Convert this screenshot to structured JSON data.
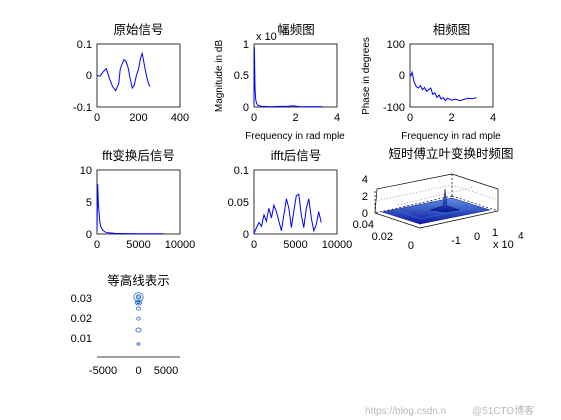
{
  "chart_data": [
    {
      "id": "p1",
      "type": "line",
      "title": "原始信号",
      "xlabel": "",
      "ylabel": "",
      "xlim": [
        0,
        400
      ],
      "ylim": [
        -0.1,
        0.1
      ],
      "xticks": [
        0,
        200,
        400
      ],
      "xticklabels": [
        "0",
        "200",
        "400"
      ],
      "yticks": [
        -0.1,
        0,
        0.1
      ],
      "yticklabels": [
        "-0.1",
        "0",
        "0.1"
      ],
      "series": [
        {
          "x": [
            0,
            15,
            30,
            45,
            60,
            75,
            90,
            105,
            112,
            120,
            130,
            140,
            150,
            160,
            170,
            180,
            190,
            200,
            210,
            218,
            225,
            232,
            240,
            248,
            255
          ],
          "y": [
            0,
            -0.002,
            0.012,
            0.022,
            -0.01,
            -0.035,
            -0.048,
            -0.025,
            0.02,
            0.035,
            0.05,
            0.045,
            0.025,
            -0.01,
            -0.04,
            -0.03,
            0.0,
            0.02,
            0.055,
            0.07,
            0.045,
            0.02,
            -0.005,
            -0.025,
            -0.035
          ]
        }
      ]
    },
    {
      "id": "p2",
      "type": "line",
      "title": "幅频图",
      "xlabel": "Frequency in rad mple",
      "ylabel": "Magnitude in dB",
      "exponent": "x 10",
      "exponent_sup": "4",
      "xlim": [
        0,
        4
      ],
      "ylim": [
        0,
        1
      ],
      "xticks": [
        0,
        2,
        4
      ],
      "xticklabels": [
        "0",
        "2",
        "4"
      ],
      "yticks": [
        0,
        0.5,
        1
      ],
      "yticklabels": [
        "0",
        "0.5",
        "1"
      ],
      "series": [
        {
          "x": [
            0,
            0.02,
            0.05,
            0.08,
            0.12,
            0.18,
            0.25,
            0.35,
            0.5,
            0.8,
            1.2,
            1.6,
            1.9,
            2.2,
            2.6,
            3.0,
            3.3
          ],
          "y": [
            0.05,
            0.95,
            0.3,
            0.12,
            0.06,
            0.03,
            0.02,
            0.01,
            0.01,
            0.005,
            0.01,
            0.01,
            0.02,
            0.005,
            0.005,
            0.005,
            0.005
          ]
        }
      ]
    },
    {
      "id": "p3",
      "type": "line",
      "title": "相频图",
      "xlabel": "Frequency in rad mple",
      "ylabel": "Phase in degrees",
      "xlim": [
        0,
        4
      ],
      "ylim": [
        -100,
        100
      ],
      "xticks": [
        0,
        2,
        4
      ],
      "xticklabels": [
        "0",
        "2",
        "4"
      ],
      "yticks": [
        -100,
        0,
        100
      ],
      "yticklabels": [
        "-100",
        "0",
        "100"
      ],
      "series": [
        {
          "x": [
            0,
            0.05,
            0.1,
            0.2,
            0.3,
            0.4,
            0.5,
            0.6,
            0.7,
            0.8,
            0.9,
            1.0,
            1.1,
            1.2,
            1.3,
            1.4,
            1.5,
            1.6,
            1.7,
            1.8,
            2.0,
            2.2,
            2.4,
            2.6,
            2.8,
            3.0,
            3.2
          ],
          "y": [
            5,
            0,
            10,
            -20,
            -35,
            -40,
            -32,
            -45,
            -38,
            -50,
            -45,
            -40,
            -60,
            -55,
            -70,
            -62,
            -75,
            -70,
            -80,
            -72,
            -78,
            -75,
            -80,
            -76,
            -72,
            -74,
            -70
          ]
        }
      ]
    },
    {
      "id": "p4",
      "type": "line",
      "title": "fft变换后信号",
      "xlabel": "",
      "ylabel": "",
      "xlim": [
        0,
        10000
      ],
      "ylim": [
        0,
        10
      ],
      "xticks": [
        0,
        5000,
        10000
      ],
      "xticklabels": [
        "0",
        "5000",
        "10000"
      ],
      "yticks": [
        0,
        5,
        10
      ],
      "yticklabels": [
        "0",
        "5",
        "10"
      ],
      "series": [
        {
          "x": [
            0,
            80,
            160,
            250,
            350,
            450,
            550,
            700,
            850,
            1000,
            1300,
            1700,
            2200,
            2800,
            3500,
            5000,
            6500,
            8000
          ],
          "y": [
            0.5,
            7.8,
            5.0,
            3.2,
            1.8,
            1.2,
            0.9,
            0.6,
            0.45,
            0.3,
            0.2,
            0.15,
            0.1,
            0.08,
            0.06,
            0.05,
            0.05,
            0.05
          ]
        }
      ]
    },
    {
      "id": "p5",
      "type": "line",
      "title": "ifft后信号",
      "xlabel": "",
      "ylabel": "",
      "xlim": [
        0,
        10000
      ],
      "ylim": [
        0,
        0.1
      ],
      "xticks": [
        0,
        5000,
        10000
      ],
      "xticklabels": [
        "0",
        "5000",
        "10000"
      ],
      "yticks": [
        0,
        0.05,
        0.1
      ],
      "yticklabels": [
        "0",
        "0.05",
        "0.1"
      ],
      "series": [
        {
          "x": [
            0,
            300,
            600,
            900,
            1200,
            1500,
            1800,
            2100,
            2400,
            2700,
            3000,
            3300,
            3600,
            3900,
            4200,
            4500,
            4800,
            5100,
            5400,
            5700,
            6000,
            6300,
            6600,
            6900,
            7200,
            7500,
            7800,
            8100
          ],
          "y": [
            0.001,
            0.01,
            0.018,
            0.012,
            0.03,
            0.02,
            0.04,
            0.025,
            0.045,
            0.035,
            0.02,
            0.005,
            0.03,
            0.055,
            0.04,
            0.01,
            0.035,
            0.06,
            0.062,
            0.03,
            0.01,
            0.04,
            0.055,
            0.025,
            0.005,
            0.015,
            0.035,
            0.018
          ]
        }
      ]
    },
    {
      "id": "p6",
      "type": "surface",
      "title": "短时傅立叶变换时频图",
      "xlabel": "",
      "ylabel": "",
      "xlim": [
        -1,
        1
      ],
      "ylim": [
        0,
        0.04
      ],
      "zlim": [
        0,
        4
      ],
      "xticklabels": [
        "-1",
        "0",
        "1"
      ],
      "yticklabels": [
        "0",
        "0.02",
        "0.04"
      ],
      "zticklabels": [
        "0",
        "2",
        "4"
      ],
      "exponent": "x 10",
      "exponent_sup": "4",
      "peak": {
        "x": 0,
        "y": 0.005,
        "z": 3.2
      }
    },
    {
      "id": "p7",
      "type": "contour",
      "title": "等高线表示",
      "xlabel": "",
      "ylabel": "",
      "xlim": [
        -8000,
        8000
      ],
      "ylim": [
        0,
        0.03
      ],
      "xticks": [
        -5000,
        0,
        5000
      ],
      "xticklabels": [
        "-5000",
        "0",
        "5000"
      ],
      "yticks": [
        0.01,
        0.02,
        0.03
      ],
      "yticklabels": [
        "0.01",
        "0.02",
        "0.03"
      ],
      "blobs": [
        {
          "x": 0,
          "y": 0.03,
          "w": 900,
          "h": 0.0022
        },
        {
          "x": 0,
          "y": 0.0272,
          "w": 650,
          "h": 0.0012
        },
        {
          "x": 0,
          "y": 0.0242,
          "w": 400,
          "h": 0.0008
        },
        {
          "x": 0,
          "y": 0.0192,
          "w": 350,
          "h": 0.0008
        },
        {
          "x": 0,
          "y": 0.0135,
          "w": 500,
          "h": 0.001
        },
        {
          "x": 0,
          "y": 0.0065,
          "w": 300,
          "h": 0.0006
        }
      ]
    }
  ],
  "watermark": {
    "url": "https://blog.csdn.n",
    "brand": "@51CTO博客"
  }
}
